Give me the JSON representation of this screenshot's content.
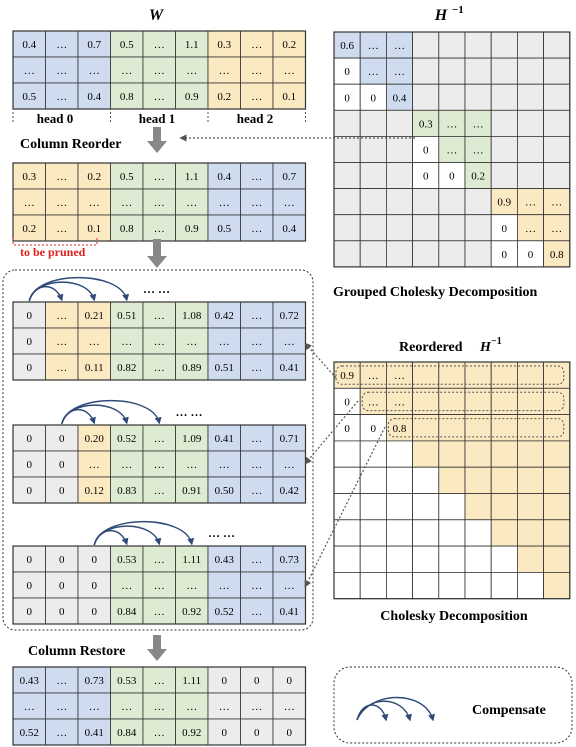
{
  "colors": {
    "blue": "#cfdcef",
    "green": "#deebd3",
    "yellow": "#fbe9c2",
    "gray": "#ececec",
    "white": "#ffffff",
    "line": "#333333",
    "arrow": "#888888",
    "curve": "#2f4a78",
    "red": "#e02020",
    "dotted": "#555555"
  },
  "w_title": "W",
  "hinv_title_base": "H",
  "hinv_exp": "−1",
  "heads": [
    "head 0",
    "head 1",
    "head 2"
  ],
  "step_column_reorder": "Column Reorder",
  "step_column_restore": "Column Restore",
  "to_be_pruned": "to be pruned",
  "grouped_caption": "Grouped Cholesky Decomposition",
  "reordered_title": "Reordered",
  "cholesky_caption": "Cholesky Decomposition",
  "legend_label": "Compensate",
  "ellipsis": "… …",
  "w_matrix": {
    "colors": [
      "blue",
      "blue",
      "blue",
      "green",
      "green",
      "green",
      "yellow",
      "yellow",
      "yellow"
    ],
    "rows": [
      [
        "0.4",
        "…",
        "0.7",
        "0.5",
        "…",
        "1.1",
        "0.3",
        "…",
        "0.2"
      ],
      [
        "…",
        "…",
        "…",
        "…",
        "…",
        "…",
        "…",
        "…",
        "…"
      ],
      [
        "0.5",
        "…",
        "0.4",
        "0.8",
        "…",
        "0.9",
        "0.2",
        "…",
        "0.1"
      ]
    ]
  },
  "reordered_matrix": {
    "colors": [
      "yellow",
      "yellow",
      "yellow",
      "green",
      "green",
      "green",
      "blue",
      "blue",
      "blue"
    ],
    "rows": [
      [
        "0.3",
        "…",
        "0.2",
        "0.5",
        "…",
        "1.1",
        "0.4",
        "…",
        "0.7"
      ],
      [
        "…",
        "…",
        "…",
        "…",
        "…",
        "…",
        "…",
        "…",
        "…"
      ],
      [
        "0.2",
        "…",
        "0.1",
        "0.8",
        "…",
        "0.9",
        "0.5",
        "…",
        "0.4"
      ]
    ]
  },
  "steps": [
    {
      "colors": [
        [
          "gray",
          "yellow",
          "yellow",
          "green",
          "green",
          "green",
          "blue",
          "blue",
          "blue"
        ],
        [
          "gray",
          "yellow",
          "yellow",
          "green",
          "green",
          "green",
          "blue",
          "blue",
          "blue"
        ],
        [
          "gray",
          "yellow",
          "yellow",
          "green",
          "green",
          "green",
          "blue",
          "blue",
          "blue"
        ]
      ],
      "rows": [
        [
          "0",
          "…",
          "0.21",
          "0.51",
          "…",
          "1.08",
          "0.42",
          "…",
          "0.72"
        ],
        [
          "0",
          "…",
          "…",
          "…",
          "…",
          "…",
          "…",
          "…",
          "…"
        ],
        [
          "0",
          "…",
          "0.11",
          "0.82",
          "…",
          "0.89",
          "0.51",
          "…",
          "0.41"
        ]
      ]
    },
    {
      "colors": [
        [
          "gray",
          "gray",
          "yellow",
          "green",
          "green",
          "green",
          "blue",
          "blue",
          "blue"
        ],
        [
          "gray",
          "gray",
          "yellow",
          "green",
          "green",
          "green",
          "blue",
          "blue",
          "blue"
        ],
        [
          "gray",
          "gray",
          "yellow",
          "green",
          "green",
          "green",
          "blue",
          "blue",
          "blue"
        ]
      ],
      "rows": [
        [
          "0",
          "0",
          "0.20",
          "0.52",
          "…",
          "1.09",
          "0.41",
          "…",
          "0.71"
        ],
        [
          "0",
          "0",
          "…",
          "…",
          "…",
          "…",
          "…",
          "…",
          "…"
        ],
        [
          "0",
          "0",
          "0.12",
          "0.83",
          "…",
          "0.91",
          "0.50",
          "…",
          "0.42"
        ]
      ]
    },
    {
      "colors": [
        [
          "gray",
          "gray",
          "gray",
          "green",
          "green",
          "green",
          "blue",
          "blue",
          "blue"
        ],
        [
          "gray",
          "gray",
          "gray",
          "green",
          "green",
          "green",
          "blue",
          "blue",
          "blue"
        ],
        [
          "gray",
          "gray",
          "gray",
          "green",
          "green",
          "green",
          "blue",
          "blue",
          "blue"
        ]
      ],
      "rows": [
        [
          "0",
          "0",
          "0",
          "0.53",
          "…",
          "1.11",
          "0.43",
          "…",
          "0.73"
        ],
        [
          "0",
          "0",
          "0",
          "…",
          "…",
          "…",
          "…",
          "…",
          "…"
        ],
        [
          "0",
          "0",
          "0",
          "0.84",
          "…",
          "0.92",
          "0.52",
          "…",
          "0.41"
        ]
      ]
    }
  ],
  "restored_matrix": {
    "colors": [
      "blue",
      "blue",
      "blue",
      "green",
      "green",
      "green",
      "gray",
      "gray",
      "gray"
    ],
    "rows": [
      [
        "0.43",
        "…",
        "0.73",
        "0.53",
        "…",
        "1.11",
        "0",
        "0",
        "0"
      ],
      [
        "…",
        "…",
        "…",
        "…",
        "…",
        "…",
        "…",
        "…",
        "…"
      ],
      [
        "0.52",
        "…",
        "0.41",
        "0.84",
        "…",
        "0.92",
        "0",
        "0",
        "0"
      ]
    ]
  },
  "grouped_blocks": [
    {
      "color": "blue",
      "rows": [
        [
          "0.6",
          "…",
          "…"
        ],
        [
          "0",
          "…",
          "…"
        ],
        [
          "0",
          "0",
          "0.4"
        ]
      ]
    },
    {
      "color": "green",
      "rows": [
        [
          "0.3",
          "…",
          "…"
        ],
        [
          "0",
          "…",
          "…"
        ],
        [
          "0",
          "0",
          "0.2"
        ]
      ]
    },
    {
      "color": "yellow",
      "rows": [
        [
          "0.9",
          "…",
          "…"
        ],
        [
          "0",
          "…",
          "…"
        ],
        [
          "0",
          "0",
          "0.8"
        ]
      ]
    }
  ],
  "reordered_hinv": {
    "rows": [
      [
        "0.9",
        "…",
        "…"
      ],
      [
        "0",
        "…",
        "…"
      ],
      [
        "0",
        "0",
        "0.8"
      ]
    ]
  }
}
